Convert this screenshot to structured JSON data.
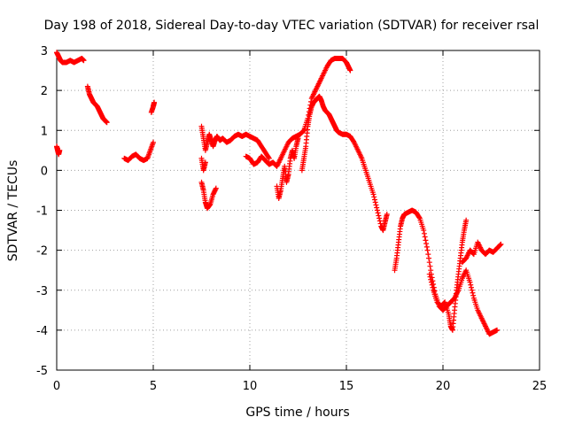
{
  "chart_data": {
    "type": "scatter",
    "title": "Day 198 of 2018, Sidereal Day-to-day VTEC variation (SDTVAR) for receiver rsal",
    "xlabel": "GPS time / hours",
    "ylabel": "SDTVAR / TECUs",
    "xlim": [
      0,
      25
    ],
    "ylim": [
      -5,
      3
    ],
    "xticks": [
      0,
      5,
      10,
      15,
      20,
      25
    ],
    "yticks": [
      -5,
      -4,
      -3,
      -2,
      -1,
      0,
      1,
      2,
      3
    ],
    "grid": true,
    "marker": "+",
    "color": "#ff0000",
    "segments": [
      [
        [
          0.0,
          0.6
        ],
        [
          0.05,
          0.5
        ],
        [
          0.1,
          0.4
        ],
        [
          0.15,
          0.5
        ]
      ],
      [
        [
          0.0,
          2.95
        ],
        [
          0.1,
          2.85
        ],
        [
          0.2,
          2.75
        ],
        [
          0.3,
          2.7
        ],
        [
          0.5,
          2.7
        ],
        [
          0.7,
          2.75
        ],
        [
          0.9,
          2.7
        ],
        [
          1.1,
          2.75
        ],
        [
          1.3,
          2.8
        ],
        [
          1.4,
          2.75
        ]
      ],
      [
        [
          1.6,
          2.1
        ],
        [
          1.7,
          1.9
        ],
        [
          1.8,
          1.8
        ],
        [
          1.9,
          1.7
        ],
        [
          2.0,
          1.65
        ],
        [
          2.1,
          1.6
        ],
        [
          2.2,
          1.5
        ],
        [
          2.3,
          1.4
        ],
        [
          2.4,
          1.3
        ],
        [
          2.5,
          1.25
        ],
        [
          2.6,
          1.2
        ]
      ],
      [
        [
          3.5,
          0.3
        ],
        [
          3.7,
          0.25
        ],
        [
          3.9,
          0.35
        ],
        [
          4.1,
          0.4
        ],
        [
          4.3,
          0.3
        ],
        [
          4.5,
          0.25
        ],
        [
          4.7,
          0.3
        ],
        [
          4.85,
          0.5
        ],
        [
          5.0,
          0.7
        ]
      ],
      [
        [
          4.9,
          1.45
        ],
        [
          5.0,
          1.6
        ],
        [
          5.05,
          1.7
        ]
      ],
      [
        [
          7.5,
          1.1
        ],
        [
          7.6,
          0.8
        ],
        [
          7.7,
          0.5
        ],
        [
          7.8,
          0.7
        ],
        [
          7.9,
          0.9
        ],
        [
          8.0,
          0.75
        ],
        [
          8.1,
          0.6
        ],
        [
          8.2,
          0.75
        ],
        [
          8.3,
          0.85
        ],
        [
          8.45,
          0.75
        ],
        [
          8.6,
          0.8
        ],
        [
          8.8,
          0.7
        ],
        [
          9.0,
          0.75
        ],
        [
          9.2,
          0.85
        ],
        [
          9.4,
          0.9
        ],
        [
          9.6,
          0.85
        ],
        [
          9.8,
          0.9
        ],
        [
          10.0,
          0.85
        ],
        [
          10.2,
          0.8
        ],
        [
          10.4,
          0.75
        ],
        [
          10.6,
          0.6
        ],
        [
          10.8,
          0.45
        ],
        [
          11.0,
          0.3
        ]
      ],
      [
        [
          7.5,
          -0.3
        ],
        [
          7.6,
          -0.5
        ],
        [
          7.7,
          -0.8
        ],
        [
          7.8,
          -0.95
        ],
        [
          7.95,
          -0.85
        ],
        [
          8.1,
          -0.6
        ],
        [
          8.25,
          -0.45
        ]
      ],
      [
        [
          7.5,
          0.3
        ],
        [
          7.6,
          0.0
        ],
        [
          7.7,
          0.2
        ]
      ],
      [
        [
          9.8,
          0.35
        ],
        [
          10.0,
          0.3
        ],
        [
          10.2,
          0.15
        ],
        [
          10.4,
          0.2
        ],
        [
          10.6,
          0.35
        ],
        [
          10.8,
          0.25
        ],
        [
          11.0,
          0.15
        ],
        [
          11.2,
          0.2
        ],
        [
          11.4,
          0.1
        ],
        [
          11.6,
          0.3
        ],
        [
          11.8,
          0.5
        ],
        [
          12.0,
          0.7
        ],
        [
          12.2,
          0.8
        ],
        [
          12.4,
          0.85
        ],
        [
          12.6,
          0.9
        ],
        [
          12.8,
          1.0
        ]
      ],
      [
        [
          11.4,
          -0.4
        ],
        [
          11.5,
          -0.7
        ],
        [
          11.6,
          -0.5
        ],
        [
          11.7,
          -0.2
        ],
        [
          11.8,
          0.1
        ],
        [
          11.9,
          -0.3
        ],
        [
          12.0,
          -0.1
        ],
        [
          12.1,
          0.3
        ],
        [
          12.2,
          0.5
        ],
        [
          12.3,
          0.3
        ],
        [
          12.4,
          0.6
        ],
        [
          12.5,
          0.8
        ]
      ],
      [
        [
          12.7,
          0.0
        ],
        [
          12.8,
          0.3
        ],
        [
          12.9,
          0.6
        ],
        [
          13.0,
          1.1
        ],
        [
          13.1,
          1.4
        ],
        [
          13.2,
          1.6
        ],
        [
          13.3,
          1.7
        ],
        [
          13.4,
          1.75
        ],
        [
          13.5,
          1.8
        ],
        [
          13.6,
          1.85
        ],
        [
          13.7,
          1.75
        ],
        [
          13.8,
          1.6
        ],
        [
          13.9,
          1.5
        ],
        [
          14.0,
          1.45
        ],
        [
          14.1,
          1.4
        ],
        [
          14.2,
          1.3
        ],
        [
          14.3,
          1.2
        ],
        [
          14.4,
          1.1
        ],
        [
          14.5,
          1.0
        ],
        [
          14.6,
          0.95
        ],
        [
          14.8,
          0.9
        ],
        [
          15.0,
          0.9
        ],
        [
          15.2,
          0.85
        ],
        [
          15.4,
          0.7
        ],
        [
          15.6,
          0.5
        ],
        [
          15.8,
          0.3
        ],
        [
          16.0,
          0.0
        ],
        [
          16.2,
          -0.3
        ],
        [
          16.4,
          -0.6
        ],
        [
          16.6,
          -1.0
        ],
        [
          16.8,
          -1.4
        ],
        [
          16.9,
          -1.5
        ],
        [
          17.0,
          -1.3
        ],
        [
          17.1,
          -1.1
        ]
      ],
      [
        [
          12.8,
          1.0
        ],
        [
          13.0,
          1.3
        ],
        [
          13.2,
          1.8
        ],
        [
          13.4,
          2.0
        ],
        [
          13.6,
          2.2
        ],
        [
          13.8,
          2.4
        ],
        [
          14.0,
          2.6
        ],
        [
          14.2,
          2.75
        ],
        [
          14.4,
          2.8
        ],
        [
          14.6,
          2.8
        ],
        [
          14.8,
          2.8
        ],
        [
          15.0,
          2.7
        ],
        [
          15.1,
          2.6
        ],
        [
          15.2,
          2.5
        ]
      ],
      [
        [
          17.5,
          -2.5
        ],
        [
          17.6,
          -2.2
        ],
        [
          17.7,
          -1.8
        ],
        [
          17.8,
          -1.4
        ],
        [
          17.9,
          -1.2
        ],
        [
          18.0,
          -1.1
        ],
        [
          18.2,
          -1.05
        ],
        [
          18.4,
          -1.0
        ],
        [
          18.6,
          -1.05
        ],
        [
          18.8,
          -1.2
        ],
        [
          19.0,
          -1.5
        ],
        [
          19.2,
          -2.0
        ],
        [
          19.4,
          -2.6
        ],
        [
          19.6,
          -3.1
        ],
        [
          19.8,
          -3.4
        ],
        [
          20.0,
          -3.5
        ],
        [
          20.2,
          -3.4
        ],
        [
          20.4,
          -3.3
        ],
        [
          20.6,
          -3.2
        ],
        [
          20.8,
          -3.0
        ],
        [
          21.0,
          -2.7
        ],
        [
          21.2,
          -2.5
        ],
        [
          21.4,
          -2.8
        ],
        [
          21.6,
          -3.2
        ],
        [
          21.8,
          -3.5
        ],
        [
          22.0,
          -3.7
        ],
        [
          22.2,
          -3.9
        ],
        [
          22.4,
          -4.1
        ],
        [
          22.6,
          -4.05
        ],
        [
          22.8,
          -4.0
        ]
      ],
      [
        [
          19.3,
          -2.6
        ],
        [
          19.5,
          -3.0
        ],
        [
          19.7,
          -3.3
        ],
        [
          19.9,
          -3.4
        ],
        [
          20.1,
          -3.3
        ],
        [
          20.3,
          -3.6
        ],
        [
          20.4,
          -3.9
        ],
        [
          20.5,
          -4.0
        ],
        [
          20.6,
          -3.5
        ],
        [
          20.7,
          -3.0
        ],
        [
          20.8,
          -2.6
        ],
        [
          20.9,
          -2.2
        ],
        [
          21.0,
          -1.8
        ],
        [
          21.1,
          -1.5
        ],
        [
          21.2,
          -1.25
        ]
      ],
      [
        [
          21.0,
          -2.3
        ],
        [
          21.2,
          -2.2
        ],
        [
          21.4,
          -2.0
        ],
        [
          21.6,
          -2.1
        ],
        [
          21.8,
          -1.8
        ],
        [
          22.0,
          -2.0
        ],
        [
          22.2,
          -2.1
        ],
        [
          22.4,
          -2.0
        ],
        [
          22.6,
          -2.05
        ],
        [
          22.8,
          -1.95
        ],
        [
          23.0,
          -1.85
        ]
      ]
    ]
  }
}
